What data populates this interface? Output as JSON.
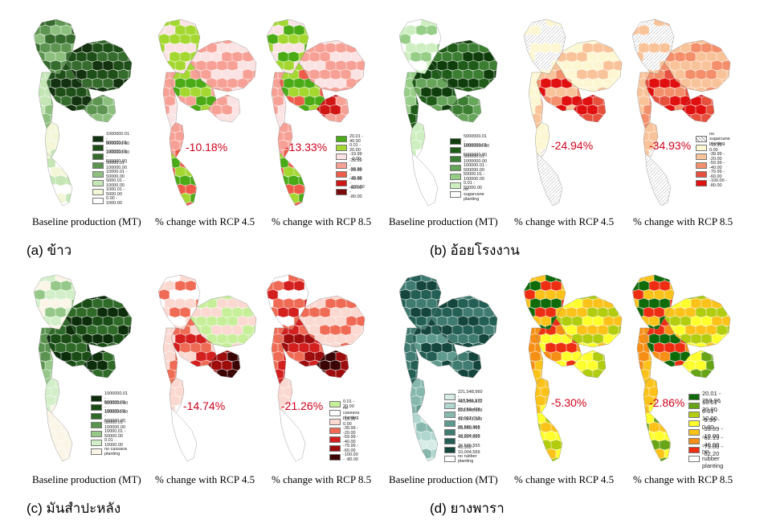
{
  "panels": [
    {
      "id": "a",
      "label": "(a) ข้าว",
      "captions": [
        "Baseline production (MT)",
        "% change with RCP 4.5",
        "% change with RCP 8.5"
      ],
      "pct_rcp45": "-10.18%",
      "pct_rcp85": "-13.33%",
      "baseline_legend": [
        {
          "label": "1000000.01 - 5000000.00",
          "color": "#13320f"
        },
        {
          "label": "500000.01 - 1000000.00",
          "color": "#1f4f18"
        },
        {
          "label": "100000.01 - 500000.00",
          "color": "#356b2c"
        },
        {
          "label": "50000.01 - 100000.00",
          "color": "#5c9450"
        },
        {
          "label": "10000.01 - 50000.00",
          "color": "#8dc07e"
        },
        {
          "label": "5000.01 - 10000.00",
          "color": "#c4e6b5"
        },
        {
          "label": "1000.01 - 5000.00",
          "color": "#f4f6d8"
        },
        {
          "label": "0.00 - 1000.00",
          "color": "#ffffff"
        }
      ],
      "change_legend": [
        {
          "label": "20.01 - 40.00",
          "color": "#4aab16"
        },
        {
          "label": "0.01 - 20.00",
          "color": "#a4d831"
        },
        {
          "label": "-19.99 - 0.00",
          "color": "#fbe3e3"
        },
        {
          "label": "-39.99 - -20.00",
          "color": "#f7a196"
        },
        {
          "label": "-59.99 - -40.00",
          "color": "#ee5c49"
        },
        {
          "label": "-79.99 - -60.00",
          "color": "#d01515"
        },
        {
          "label": "-100.00 - -80.00",
          "color": "#7a0b0b"
        }
      ]
    },
    {
      "id": "b",
      "label": "(b) อ้อยโรงงาน",
      "captions": [
        "Baseline production (MT)",
        "% change with RCP 4.5",
        "% change with RCP 8.5"
      ],
      "pct_rcp45": "-24.94%",
      "pct_rcp85": "-34.93%",
      "baseline_legend": [
        {
          "label": "5000000.01 - 10000000.00",
          "color": "#0f3e0c"
        },
        {
          "label": "1000000.01 - 5000000.00",
          "color": "#1e5c18"
        },
        {
          "label": "500000.01 - 1000000.00",
          "color": "#3b7d31"
        },
        {
          "label": "100000.01 - 500000.00",
          "color": "#67a55a"
        },
        {
          "label": "50000.01 - 100000.00",
          "color": "#96cd87"
        },
        {
          "label": "0.01 - 50000.00",
          "color": "#cdefc0"
        },
        {
          "label": "no sugarcane planting",
          "color": "#ffffff"
        }
      ],
      "change_legend": [
        {
          "label": "no sugarcane planting",
          "color": "hatch"
        },
        {
          "label": "-19.99 - 0.00",
          "color": "#fcf7d2"
        },
        {
          "label": "-39.99 - -20.00",
          "color": "#f9c39a"
        },
        {
          "label": "-59.99 - -40.00",
          "color": "#f38f6a"
        },
        {
          "label": "-79.99 - -60.00",
          "color": "#e6503d"
        },
        {
          "label": "-100.00 - -80.00",
          "color": "#e11010"
        }
      ]
    },
    {
      "id": "c",
      "label": "(c) มันสำปะหลัง",
      "captions": [
        "Baseline production (MT)",
        "% change with RCP 4.5",
        "% change with RCP 8.5"
      ],
      "pct_rcp45": "-14.74%",
      "pct_rcp85": "-21.26%",
      "baseline_legend": [
        {
          "label": "1000000.01 - 5000000.00",
          "color": "#0d2e0b"
        },
        {
          "label": "500000.01 - 1000000.00",
          "color": "#1a4d16"
        },
        {
          "label": "100000.01 - 500000.00",
          "color": "#2f6a28"
        },
        {
          "label": "50000.01 - 100000.00",
          "color": "#5b9350"
        },
        {
          "label": "10000.01 - 50000.00",
          "color": "#95c889"
        },
        {
          "label": "0.01 - 10000.00",
          "color": "#d3efc9"
        },
        {
          "label": "no cassava planting",
          "color": "#fbf5e8"
        }
      ],
      "change_legend": [
        {
          "label": "0.01 - 20.00",
          "color": "#c7ef9a"
        },
        {
          "label": "no cassava planting",
          "color": "#ffffff"
        },
        {
          "label": "-19.99 - 0.00",
          "color": "#fbd8d0"
        },
        {
          "label": "-39.99 - -20.00",
          "color": "#ef6b55"
        },
        {
          "label": "-59.99 - -40.00",
          "color": "#d41f1f"
        },
        {
          "label": "-79.99 - -60.00",
          "color": "#9e0d0d"
        },
        {
          "label": "-100.00 - -80.00",
          "color": "#3b0505"
        }
      ]
    },
    {
      "id": "d",
      "label": "(d) ยางพารา",
      "captions": [
        "Baseline production (MT)",
        "% change with RCP 4.5",
        "% change with RCP 8.5"
      ],
      "pct_rcp45": "-5.30%",
      "pct_rcp85": "-2.86%",
      "baseline_legend": [
        {
          "label": "221,548,960 - 483,898,812",
          "color": "#d7ece7"
        },
        {
          "label": "117,541,170 - 221,548,959",
          "color": "#b1d6cf"
        },
        {
          "label": "65,650,403 - 117,541,169",
          "color": "#86b8ae"
        },
        {
          "label": "43,927,013 - 65,650,402",
          "color": "#5f9a8f"
        },
        {
          "label": "26,580,556 - 43,927,012",
          "color": "#3f7b70"
        },
        {
          "label": "10,004,600 - 26,580,555",
          "color": "#245f55"
        },
        {
          "label": "42,302 - 10,004,599",
          "color": "#14463d"
        },
        {
          "label": "no rubber planting",
          "color": "#ffffff"
        }
      ],
      "change_legend": [
        {
          "label": "20.01 - 258.96",
          "color": "#0f6b0a"
        },
        {
          "label": "10.01 - 20.00",
          "color": "#67a516"
        },
        {
          "label": "0.01 - 10.00",
          "color": "#b2cc10"
        },
        {
          "label": "-9.99 - 0.00",
          "color": "#ffff2e"
        },
        {
          "label": "-39.99 - -10.00",
          "color": "#fbc21a"
        },
        {
          "label": "-62.19 - -40.00",
          "color": "#f68f15"
        },
        {
          "label": "-79.00 - -62.20",
          "color": "#ee2e12"
        },
        {
          "label": "no rubber planting",
          "color": "#ffffff"
        }
      ]
    }
  ]
}
